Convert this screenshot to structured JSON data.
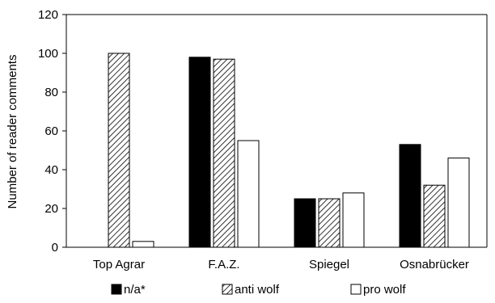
{
  "chart_data": {
    "type": "bar",
    "categories": [
      "Top Agrar",
      "F.A.Z.",
      "Spiegel",
      "Osnabrücker"
    ],
    "series": [
      {
        "name": "n/a*",
        "values": [
          0,
          98,
          25,
          53
        ],
        "fill": "#000000",
        "pattern": "solid"
      },
      {
        "name": "anti wolf",
        "values": [
          100,
          97,
          25,
          32
        ],
        "fill": "#ffffff",
        "pattern": "diagonal-hatch"
      },
      {
        "name": "pro wolf",
        "values": [
          3,
          55,
          28,
          46
        ],
        "fill": "#ffffff",
        "pattern": "none"
      }
    ],
    "ylabel": "Number of reader comments",
    "xlabel": "",
    "ylim": [
      0,
      120
    ],
    "yticks": [
      0,
      20,
      40,
      60,
      80,
      100,
      120
    ],
    "grid": false,
    "legend": "bottom"
  }
}
